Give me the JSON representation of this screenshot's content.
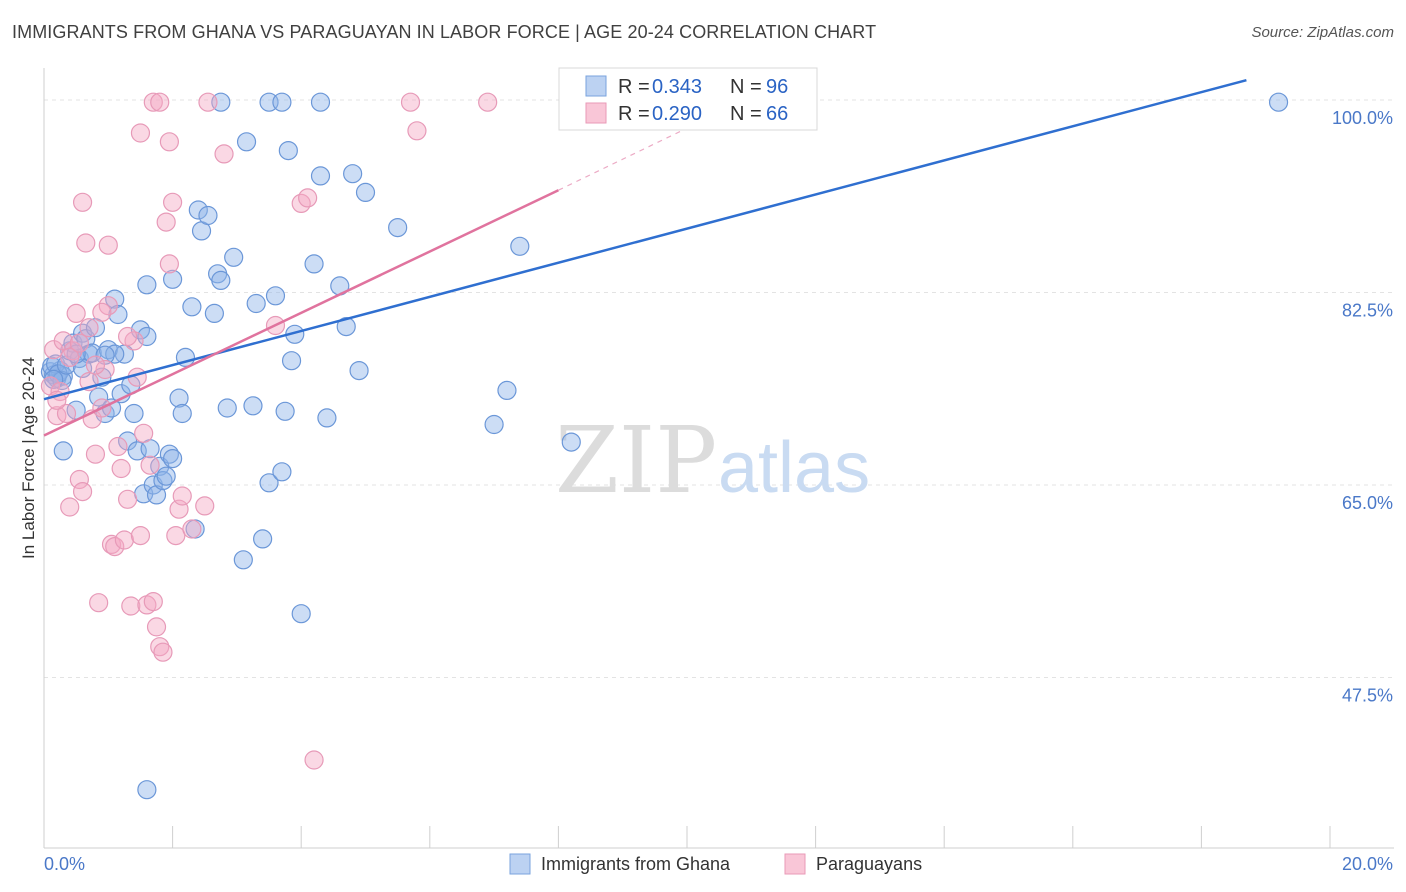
{
  "header": {
    "title": "IMMIGRANTS FROM GHANA VS PARAGUAYAN IN LABOR FORCE | AGE 20-24 CORRELATION CHART",
    "source": "Source: ZipAtlas.com"
  },
  "watermark": {
    "part1": "ZIP",
    "part2": "atlas"
  },
  "chart_data": {
    "type": "scatter",
    "title": "IMMIGRANTS FROM GHANA VS PARAGUAYAN IN LABOR FORCE | AGE 20-24 CORRELATION CHART",
    "xlabel": "",
    "ylabel": "In Labor Force | Age 20-24",
    "xlim": [
      0,
      20
    ],
    "ylim": [
      32,
      102
    ],
    "x_tick_labels": [
      "0.0%",
      "20.0%"
    ],
    "y_ticks": [
      {
        "value": 100.0,
        "label": "100.0%"
      },
      {
        "value": 82.5,
        "label": "82.5%"
      },
      {
        "value": 65.0,
        "label": "65.0%"
      },
      {
        "value": 47.5,
        "label": "47.5%"
      }
    ],
    "grid": true,
    "legend_position": "top-center",
    "series": [
      {
        "name": "Immigrants from Ghana",
        "color": "#8fb4e8",
        "line_color": "#2f6fd0",
        "R": "0.343",
        "N": "96",
        "trend": {
          "x0": 0,
          "y0": 72.8,
          "x1": 18.7,
          "y1": 101.8
        },
        "points": [
          [
            0.1,
            75.3
          ],
          [
            0.15,
            75.0
          ],
          [
            0.2,
            74.7
          ],
          [
            0.25,
            75.4
          ],
          [
            0.3,
            74.9
          ],
          [
            0.12,
            75.8
          ],
          [
            0.18,
            76.0
          ],
          [
            0.22,
            75.1
          ],
          [
            0.28,
            74.5
          ],
          [
            0.35,
            75.9
          ],
          [
            0.4,
            77.2
          ],
          [
            0.45,
            77.9
          ],
          [
            0.5,
            71.8
          ],
          [
            0.55,
            76.5
          ],
          [
            0.6,
            78.8
          ],
          [
            0.65,
            78.3
          ],
          [
            0.7,
            76.9
          ],
          [
            0.75,
            77.0
          ],
          [
            0.8,
            79.3
          ],
          [
            0.85,
            73.0
          ],
          [
            0.9,
            74.8
          ],
          [
            0.95,
            71.5
          ],
          [
            1.0,
            77.3
          ],
          [
            1.05,
            72.0
          ],
          [
            1.1,
            81.9
          ],
          [
            1.15,
            80.5
          ],
          [
            1.2,
            73.3
          ],
          [
            1.25,
            76.9
          ],
          [
            1.3,
            69.0
          ],
          [
            1.35,
            74.1
          ],
          [
            1.4,
            71.5
          ],
          [
            1.45,
            68.1
          ],
          [
            1.5,
            79.1
          ],
          [
            1.55,
            64.2
          ],
          [
            1.6,
            78.5
          ],
          [
            1.65,
            68.3
          ],
          [
            1.7,
            65.0
          ],
          [
            1.75,
            64.1
          ],
          [
            1.8,
            66.7
          ],
          [
            1.85,
            65.4
          ],
          [
            1.9,
            65.8
          ],
          [
            1.95,
            67.8
          ],
          [
            2.0,
            83.7
          ],
          [
            2.1,
            72.9
          ],
          [
            2.15,
            71.5
          ],
          [
            2.2,
            76.6
          ],
          [
            2.3,
            81.2
          ],
          [
            2.35,
            61.0
          ],
          [
            2.4,
            90.0
          ],
          [
            2.45,
            88.1
          ],
          [
            2.55,
            89.5
          ],
          [
            2.65,
            80.6
          ],
          [
            2.7,
            84.2
          ],
          [
            2.75,
            83.6
          ],
          [
            2.85,
            72.0
          ],
          [
            2.95,
            85.7
          ],
          [
            3.1,
            58.2
          ],
          [
            3.15,
            96.2
          ],
          [
            3.25,
            72.2
          ],
          [
            3.3,
            81.5
          ],
          [
            3.4,
            60.1
          ],
          [
            3.5,
            65.2
          ],
          [
            3.6,
            82.2
          ],
          [
            3.7,
            66.2
          ],
          [
            3.75,
            71.7
          ],
          [
            3.8,
            95.4
          ],
          [
            3.85,
            76.3
          ],
          [
            3.9,
            78.7
          ],
          [
            4.0,
            53.3
          ],
          [
            4.2,
            85.1
          ],
          [
            4.3,
            93.1
          ],
          [
            4.4,
            71.1
          ],
          [
            4.6,
            83.1
          ],
          [
            4.7,
            79.4
          ],
          [
            4.8,
            93.3
          ],
          [
            4.9,
            75.4
          ],
          [
            5.0,
            91.6
          ],
          [
            5.5,
            88.4
          ],
          [
            7.0,
            70.5
          ],
          [
            7.2,
            73.6
          ],
          [
            7.4,
            86.7
          ],
          [
            8.2,
            68.9
          ],
          [
            2.75,
            99.8
          ],
          [
            3.5,
            99.8
          ],
          [
            3.7,
            99.8
          ],
          [
            4.3,
            99.8
          ],
          [
            19.2,
            99.8
          ],
          [
            1.6,
            37.3
          ],
          [
            0.3,
            68.1
          ],
          [
            1.1,
            76.9
          ],
          [
            0.6,
            75.6
          ],
          [
            0.95,
            76.8
          ],
          [
            2.0,
            67.4
          ],
          [
            0.5,
            76.9
          ],
          [
            1.6,
            83.2
          ],
          [
            0.15,
            74.6
          ]
        ]
      },
      {
        "name": "Paraguayans",
        "color": "#f4a9c3",
        "line_color": "#e0739e",
        "R": "0.290",
        "N": "66",
        "trend": {
          "x0": 0,
          "y0": 69.5,
          "x1": 8.0,
          "y1": 91.8
        },
        "trend_dashed_to": {
          "x": 10.2,
          "y": 98.0
        },
        "points": [
          [
            0.1,
            74.0
          ],
          [
            0.15,
            77.3
          ],
          [
            0.2,
            71.3
          ],
          [
            0.25,
            73.5
          ],
          [
            0.3,
            78.1
          ],
          [
            0.35,
            71.5
          ],
          [
            0.4,
            63.0
          ],
          [
            0.45,
            77.2
          ],
          [
            0.5,
            80.6
          ],
          [
            0.55,
            65.5
          ],
          [
            0.6,
            64.4
          ],
          [
            0.65,
            87.0
          ],
          [
            0.7,
            79.3
          ],
          [
            0.75,
            71.0
          ],
          [
            0.8,
            67.8
          ],
          [
            0.85,
            54.3
          ],
          [
            0.9,
            72.0
          ],
          [
            0.95,
            75.5
          ],
          [
            1.0,
            81.3
          ],
          [
            1.05,
            59.6
          ],
          [
            1.1,
            59.4
          ],
          [
            1.15,
            68.5
          ],
          [
            1.2,
            66.5
          ],
          [
            1.25,
            60.0
          ],
          [
            1.3,
            63.7
          ],
          [
            1.35,
            54.0
          ],
          [
            1.4,
            78.1
          ],
          [
            1.45,
            74.8
          ],
          [
            1.5,
            60.4
          ],
          [
            1.55,
            69.7
          ],
          [
            1.6,
            54.1
          ],
          [
            1.65,
            66.8
          ],
          [
            1.7,
            54.4
          ],
          [
            1.75,
            52.1
          ],
          [
            1.8,
            50.3
          ],
          [
            1.85,
            49.8
          ],
          [
            1.9,
            88.9
          ],
          [
            1.95,
            85.1
          ],
          [
            2.0,
            90.7
          ],
          [
            2.05,
            60.4
          ],
          [
            2.1,
            62.8
          ],
          [
            2.15,
            64.0
          ],
          [
            2.3,
            61.0
          ],
          [
            2.5,
            63.1
          ],
          [
            2.8,
            95.1
          ],
          [
            3.6,
            79.5
          ],
          [
            4.0,
            90.6
          ],
          [
            4.1,
            91.1
          ],
          [
            5.8,
            97.2
          ],
          [
            1.5,
            97.0
          ],
          [
            1.95,
            96.2
          ],
          [
            1.7,
            99.8
          ],
          [
            1.8,
            99.8
          ],
          [
            2.55,
            99.8
          ],
          [
            5.7,
            99.8
          ],
          [
            6.9,
            99.8
          ],
          [
            4.2,
            40.0
          ],
          [
            0.6,
            90.7
          ],
          [
            1.0,
            86.8
          ],
          [
            0.4,
            76.6
          ],
          [
            0.8,
            75.9
          ],
          [
            0.2,
            72.7
          ],
          [
            1.3,
            78.5
          ],
          [
            0.55,
            77.9
          ],
          [
            0.9,
            80.7
          ],
          [
            0.7,
            74.4
          ]
        ]
      }
    ]
  },
  "legend": {
    "r_label": "R =",
    "n_label": "N =",
    "items": [
      {
        "name": "Immigrants from Ghana",
        "r": "0.343",
        "n": "96"
      },
      {
        "name": "Paraguayans",
        "r": "0.290",
        "n": "66"
      }
    ]
  }
}
